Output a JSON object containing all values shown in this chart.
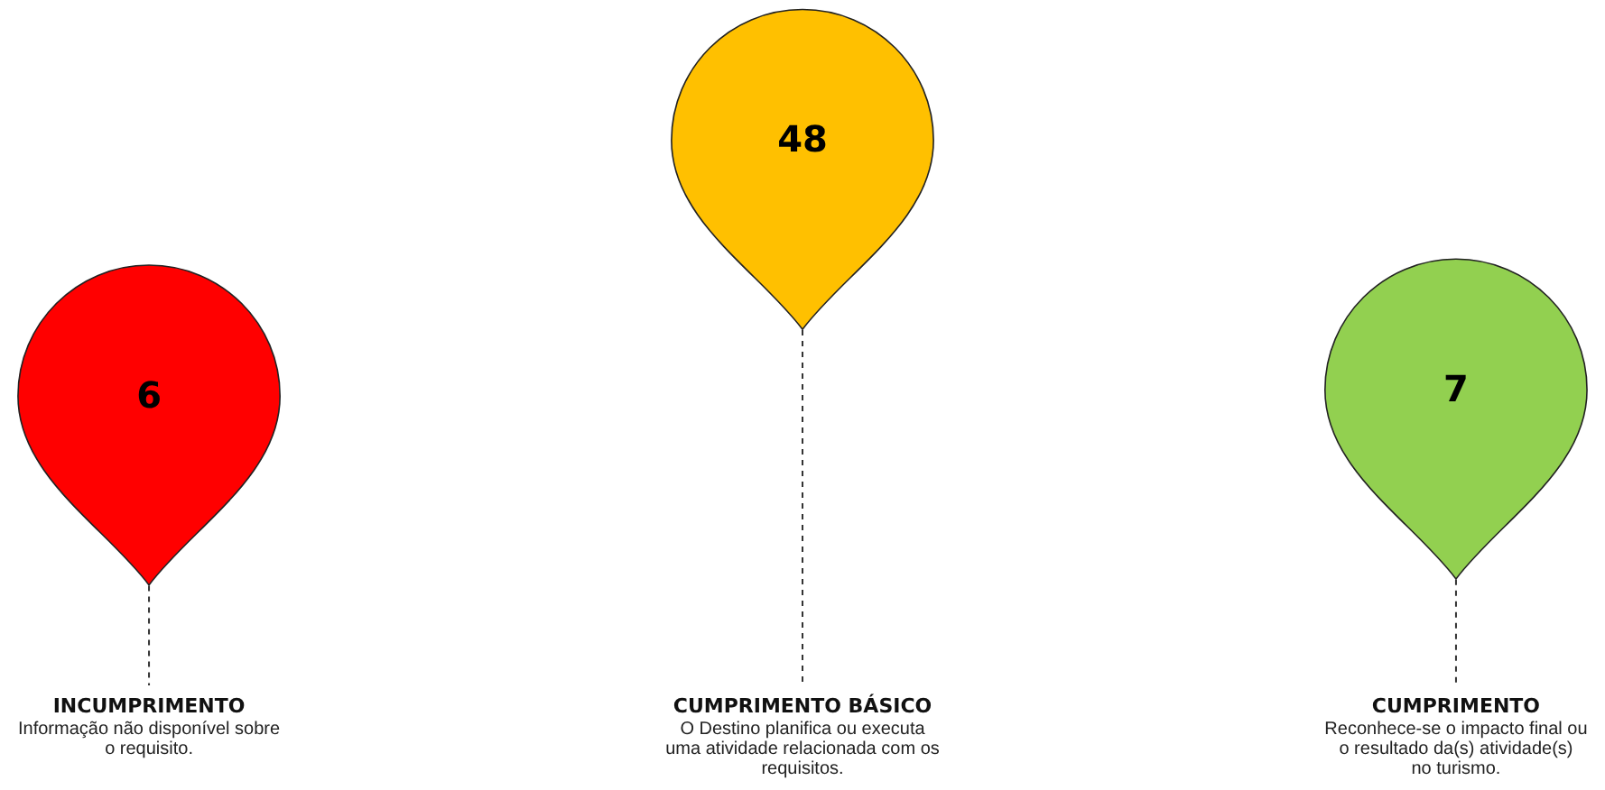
{
  "chart_data": {
    "type": "other",
    "categories": [
      "INCUMPRIMENTO",
      "CUMPRIMENTO BÁSICO",
      "CUMPRIMENTO"
    ],
    "values": [
      6,
      48,
      7
    ],
    "colors": [
      "#ff0000",
      "#ffc000",
      "#92d050"
    ],
    "data_labels": true,
    "annotations": [
      {
        "text": "Informação não disponível sobre o requisito.",
        "x": "INCUMPRIMENTO"
      },
      {
        "text": "O Destino planifica ou executa uma atividade relacionada com os requisitos.",
        "x": "CUMPRIMENTO BÁSICO"
      },
      {
        "text": "Reconhece-se o impacto final ou o resultado da(s) atividade(s) no turismo.",
        "x": "CUMPRIMENTO"
      }
    ]
  }
}
